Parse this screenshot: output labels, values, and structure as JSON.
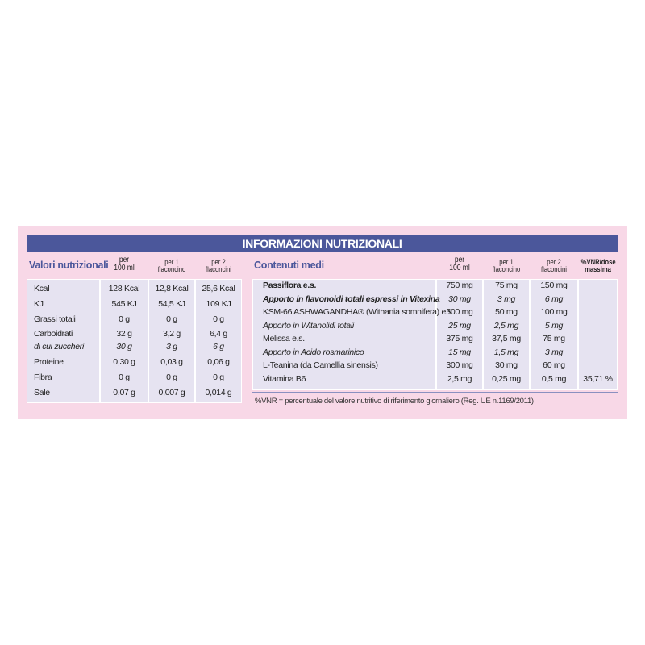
{
  "title": "INFORMAZIONI NUTRIZIONALI",
  "left": {
    "heading": "Valori nutrizionali",
    "columns": [
      [
        "per",
        "100 ml"
      ],
      [
        "per 1",
        "flaconcino"
      ],
      [
        "per 2",
        "flaconcini"
      ]
    ],
    "rows": [
      {
        "label": "Kcal",
        "values": [
          "128 Kcal",
          "12,8 Kcal",
          "25,6 Kcal"
        ]
      },
      {
        "label": "KJ",
        "values": [
          "545 KJ",
          "54,5 KJ",
          "109 KJ"
        ]
      },
      {
        "label": "Grassi totali",
        "values": [
          "0 g",
          "0 g",
          "0 g"
        ]
      },
      {
        "label": "Carboidrati",
        "values": [
          "32 g",
          "3,2 g",
          "6,4 g"
        ]
      },
      {
        "label": "di cui zuccheri",
        "values": [
          "30 g",
          "3 g",
          "6 g"
        ],
        "italic": true
      },
      {
        "label": "Proteine",
        "values": [
          "0,30 g",
          "0,03 g",
          "0,06 g"
        ]
      },
      {
        "label": "Fibra",
        "values": [
          "0 g",
          "0 g",
          "0 g"
        ]
      },
      {
        "label": "Sale",
        "values": [
          "0,07 g",
          "0,007 g",
          "0,014 g"
        ]
      }
    ]
  },
  "right": {
    "heading": "Contenuti medi",
    "columns": [
      [
        "per",
        "100 ml"
      ],
      [
        "per 1",
        "flaconcino"
      ],
      [
        "per 2",
        "flaconcini"
      ],
      [
        "%VNR/dose",
        "massima"
      ]
    ],
    "rows": [
      {
        "label": "Passiflora e.s.",
        "values": [
          "750 mg",
          "75 mg",
          "150 mg",
          ""
        ],
        "bold": true
      },
      {
        "label": "Apporto in flavonoidi totali espressi in Vitexina",
        "values": [
          "30 mg",
          "3 mg",
          "6 mg",
          ""
        ],
        "italic": true,
        "bold": true
      },
      {
        "label": "KSM-66 ASHWAGANDHA® (Withania somnifera) e.s.",
        "values": [
          "500 mg",
          "50 mg",
          "100 mg",
          ""
        ]
      },
      {
        "label": "Apporto in Witanolidi totali",
        "values": [
          "25 mg",
          "2,5 mg",
          "5 mg",
          ""
        ],
        "italic": true
      },
      {
        "label": "Melissa e.s.",
        "values": [
          "375 mg",
          "37,5 mg",
          "75 mg",
          ""
        ]
      },
      {
        "label": "Apporto in Acido rosmarinico",
        "values": [
          "15 mg",
          "1,5 mg",
          "3 mg",
          ""
        ],
        "italic": true
      },
      {
        "label": "L-Teanina (da Camellia sinensis)",
        "values": [
          "300 mg",
          "30 mg",
          "60 mg",
          ""
        ]
      },
      {
        "label": "Vitamina B6",
        "values": [
          "2,5 mg",
          "0,25 mg",
          "0,5 mg",
          "35,71 %"
        ]
      }
    ]
  },
  "footnote": "%VNR = percentuale del valore nutritivo di riferimento giornaliero (Reg. UE n.1169/2011)"
}
